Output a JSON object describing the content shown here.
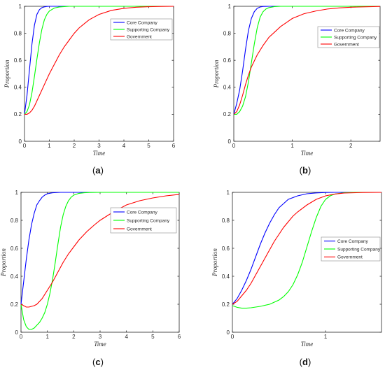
{
  "colors": {
    "core": "#0000ff",
    "supporting": "#00ff00",
    "government": "#ff0000"
  },
  "chart_data": [
    {
      "type": "line",
      "panel_label": "a",
      "xlabel": "Time",
      "ylabel": "Proportion",
      "xlim": [
        0,
        6
      ],
      "ylim": [
        0,
        1
      ],
      "xticks": [
        "0",
        "1",
        "2",
        "3",
        "4",
        "5",
        "6"
      ],
      "yticks": [
        "0",
        "0.2",
        "0.4",
        "0.6",
        "0.8",
        "1"
      ],
      "grid": false,
      "legend_position": "top-right",
      "series": [
        {
          "name": "Core Company",
          "color": "#0000ff",
          "x": [
            0,
            0.1,
            0.2,
            0.3,
            0.4,
            0.5,
            0.6,
            0.7,
            0.8,
            0.9,
            1.0,
            1.2,
            1.5,
            2,
            3,
            4,
            5,
            6
          ],
          "y": [
            0.2,
            0.34,
            0.53,
            0.72,
            0.86,
            0.94,
            0.975,
            0.99,
            0.996,
            0.999,
            1,
            1,
            1,
            1,
            1,
            1,
            1,
            1
          ]
        },
        {
          "name": "Supporting Company",
          "color": "#00ff00",
          "x": [
            0,
            0.1,
            0.2,
            0.3,
            0.4,
            0.5,
            0.6,
            0.7,
            0.8,
            0.9,
            1.0,
            1.2,
            1.4,
            1.6,
            1.8,
            2.0,
            2.5,
            3,
            4,
            5,
            6
          ],
          "y": [
            0.2,
            0.22,
            0.27,
            0.36,
            0.48,
            0.61,
            0.73,
            0.83,
            0.9,
            0.94,
            0.965,
            0.987,
            0.995,
            0.998,
            1,
            1,
            1,
            1,
            1,
            1,
            1
          ]
        },
        {
          "name": "Government",
          "color": "#ff0000",
          "x": [
            0,
            0.1,
            0.2,
            0.3,
            0.4,
            0.5,
            0.6,
            0.8,
            1.0,
            1.2,
            1.4,
            1.6,
            1.8,
            2.0,
            2.2,
            2.4,
            2.6,
            2.8,
            3.0,
            3.5,
            4.0,
            4.5,
            5.0,
            5.5,
            6.0
          ],
          "y": [
            0.2,
            0.2,
            0.21,
            0.23,
            0.26,
            0.3,
            0.34,
            0.42,
            0.5,
            0.57,
            0.64,
            0.7,
            0.75,
            0.8,
            0.84,
            0.87,
            0.9,
            0.92,
            0.94,
            0.97,
            0.985,
            0.993,
            0.997,
            0.999,
            1
          ]
        }
      ]
    },
    {
      "type": "line",
      "panel_label": "b",
      "xlabel": "Time",
      "ylabel": "Proportion",
      "xlim": [
        0,
        2.5
      ],
      "ylim": [
        0,
        1
      ],
      "xticks": [
        "0",
        "1",
        "2"
      ],
      "xtick_values": [
        0,
        1,
        2
      ],
      "yticks": [
        "0",
        "0.2",
        "0.4",
        "0.6",
        "0.8",
        "1"
      ],
      "grid": false,
      "legend_position": "top-right",
      "series": [
        {
          "name": "Core Company",
          "color": "#0000ff",
          "x": [
            0,
            0.05,
            0.1,
            0.15,
            0.2,
            0.25,
            0.3,
            0.35,
            0.4,
            0.45,
            0.5,
            0.6,
            0.8,
            1.0,
            1.5,
            2.0,
            2.5
          ],
          "y": [
            0.2,
            0.28,
            0.38,
            0.52,
            0.68,
            0.82,
            0.91,
            0.96,
            0.985,
            0.995,
            0.999,
            1,
            1,
            1,
            1,
            1,
            1
          ]
        },
        {
          "name": "Supporting Company",
          "color": "#00ff00",
          "x": [
            0,
            0.05,
            0.1,
            0.15,
            0.2,
            0.25,
            0.3,
            0.35,
            0.4,
            0.45,
            0.5,
            0.55,
            0.6,
            0.7,
            0.8,
            1.0,
            1.5,
            2.0,
            2.5
          ],
          "y": [
            0.2,
            0.2,
            0.22,
            0.26,
            0.33,
            0.44,
            0.58,
            0.72,
            0.84,
            0.92,
            0.96,
            0.98,
            0.99,
            0.998,
            1,
            1,
            1,
            1,
            1
          ]
        },
        {
          "name": "Government",
          "color": "#ff0000",
          "x": [
            0,
            0.05,
            0.1,
            0.15,
            0.2,
            0.25,
            0.3,
            0.4,
            0.5,
            0.6,
            0.7,
            0.8,
            0.9,
            1.0,
            1.2,
            1.4,
            1.6,
            1.8,
            2.0,
            2.2,
            2.5
          ],
          "y": [
            0.2,
            0.22,
            0.27,
            0.34,
            0.42,
            0.49,
            0.55,
            0.64,
            0.71,
            0.77,
            0.81,
            0.85,
            0.88,
            0.91,
            0.945,
            0.965,
            0.98,
            0.988,
            0.993,
            0.996,
            0.999
          ]
        }
      ]
    },
    {
      "type": "line",
      "panel_label": "c",
      "xlabel": "Time",
      "ylabel": "Proportion",
      "xlim": [
        0,
        6
      ],
      "ylim": [
        0,
        1
      ],
      "xticks": [
        "0",
        "1",
        "2",
        "3",
        "4",
        "5",
        "6"
      ],
      "yticks": [
        "0",
        "0.2",
        "0.4",
        "0.6",
        "0.8",
        "1"
      ],
      "grid": false,
      "legend_position": "top-right",
      "series": [
        {
          "name": "Core Company",
          "color": "#0000ff",
          "x": [
            0,
            0.1,
            0.2,
            0.3,
            0.4,
            0.5,
            0.6,
            0.7,
            0.8,
            0.9,
            1.0,
            1.2,
            1.5,
            2,
            3,
            4,
            5,
            6
          ],
          "y": [
            0.2,
            0.36,
            0.52,
            0.66,
            0.77,
            0.85,
            0.91,
            0.94,
            0.965,
            0.98,
            0.99,
            0.997,
            1,
            1,
            1,
            1,
            1,
            1
          ]
        },
        {
          "name": "Supporting Company",
          "color": "#00ff00",
          "x": [
            0,
            0.1,
            0.2,
            0.3,
            0.4,
            0.5,
            0.6,
            0.7,
            0.8,
            0.9,
            1.0,
            1.1,
            1.2,
            1.3,
            1.4,
            1.5,
            1.6,
            1.7,
            1.8,
            1.9,
            2.0,
            2.2,
            2.4,
            2.6,
            3,
            4,
            5,
            6
          ],
          "y": [
            0.2,
            0.09,
            0.04,
            0.02,
            0.02,
            0.03,
            0.05,
            0.07,
            0.1,
            0.14,
            0.2,
            0.28,
            0.38,
            0.5,
            0.63,
            0.75,
            0.84,
            0.9,
            0.94,
            0.965,
            0.98,
            0.993,
            0.997,
            0.999,
            1,
            1,
            1,
            1
          ]
        },
        {
          "name": "Government",
          "color": "#ff0000",
          "x": [
            0,
            0.1,
            0.2,
            0.3,
            0.4,
            0.5,
            0.6,
            0.8,
            1.0,
            1.2,
            1.4,
            1.6,
            1.8,
            2.0,
            2.2,
            2.5,
            2.8,
            3.0,
            3.5,
            4.0,
            4.5,
            5.0,
            5.5,
            6.0
          ],
          "y": [
            0.2,
            0.19,
            0.18,
            0.18,
            0.185,
            0.19,
            0.2,
            0.24,
            0.3,
            0.36,
            0.43,
            0.5,
            0.56,
            0.61,
            0.66,
            0.72,
            0.77,
            0.8,
            0.86,
            0.91,
            0.94,
            0.96,
            0.975,
            0.985
          ]
        }
      ]
    },
    {
      "type": "line",
      "panel_label": "d",
      "xlabel": "Time",
      "ylabel": "Proportion",
      "xlim": [
        0,
        1.6
      ],
      "ylim": [
        0,
        1
      ],
      "xticks": [
        "0",
        "1"
      ],
      "xtick_values": [
        0,
        1
      ],
      "yticks": [
        "0",
        "0.2",
        "0.4",
        "0.6",
        "0.8",
        "1"
      ],
      "grid": false,
      "legend_position": "center-right",
      "series": [
        {
          "name": "Core Company",
          "color": "#0000ff",
          "x": [
            0,
            0.05,
            0.1,
            0.15,
            0.2,
            0.25,
            0.3,
            0.35,
            0.4,
            0.45,
            0.5,
            0.55,
            0.6,
            0.7,
            0.8,
            0.9,
            1.0,
            1.1,
            1.2,
            1.4,
            1.6
          ],
          "y": [
            0.2,
            0.24,
            0.3,
            0.37,
            0.45,
            0.54,
            0.63,
            0.71,
            0.78,
            0.84,
            0.89,
            0.92,
            0.95,
            0.975,
            0.99,
            0.996,
            0.999,
            1,
            1,
            1,
            1
          ]
        },
        {
          "name": "Supporting Company",
          "color": "#00ff00",
          "x": [
            0,
            0.05,
            0.1,
            0.15,
            0.2,
            0.3,
            0.4,
            0.5,
            0.55,
            0.6,
            0.65,
            0.7,
            0.75,
            0.8,
            0.85,
            0.9,
            0.95,
            1.0,
            1.05,
            1.1,
            1.2,
            1.3,
            1.4,
            1.6
          ],
          "y": [
            0.19,
            0.178,
            0.172,
            0.172,
            0.175,
            0.185,
            0.2,
            0.23,
            0.255,
            0.29,
            0.34,
            0.41,
            0.5,
            0.61,
            0.72,
            0.82,
            0.9,
            0.95,
            0.975,
            0.988,
            0.997,
            1,
            1,
            1
          ]
        },
        {
          "name": "Government",
          "color": "#ff0000",
          "x": [
            0,
            0.05,
            0.1,
            0.15,
            0.2,
            0.25,
            0.3,
            0.35,
            0.4,
            0.45,
            0.5,
            0.55,
            0.6,
            0.65,
            0.7,
            0.8,
            0.9,
            1.0,
            1.1,
            1.2,
            1.4,
            1.6
          ],
          "y": [
            0.2,
            0.22,
            0.26,
            0.3,
            0.35,
            0.41,
            0.47,
            0.53,
            0.59,
            0.65,
            0.7,
            0.75,
            0.79,
            0.83,
            0.86,
            0.91,
            0.95,
            0.975,
            0.988,
            0.995,
            0.999,
            1
          ]
        }
      ]
    }
  ]
}
